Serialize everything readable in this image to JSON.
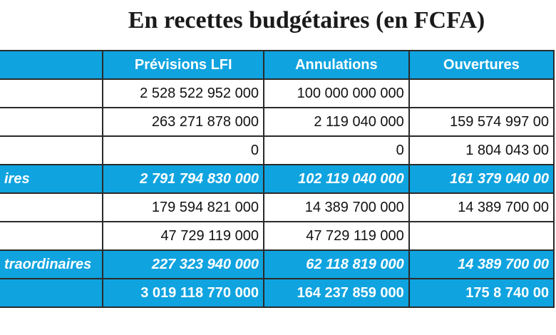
{
  "title": "En recettes budgétaires (en FCFA)",
  "table": {
    "headers": [
      "",
      "Prévisions LFI",
      "Annulations",
      "Ouvertures"
    ],
    "rows": [
      {
        "kind": "data",
        "label": "",
        "values": [
          "2 528 522 952 000",
          "100 000 000 000",
          ""
        ]
      },
      {
        "kind": "data",
        "label": "",
        "values": [
          "263 271 878 000",
          "2 119 040 000",
          "159 574 997 00"
        ]
      },
      {
        "kind": "data",
        "label": "",
        "values": [
          "0",
          "0",
          "1 804 043 00"
        ]
      },
      {
        "kind": "total",
        "label": "ires",
        "values": [
          "2 791 794 830 000",
          "102 119 040 000",
          "161 379 040 00"
        ]
      },
      {
        "kind": "data",
        "label": "",
        "values": [
          "179 594 821 000",
          "14 389 700 000",
          "14 389 700 00"
        ]
      },
      {
        "kind": "data",
        "label": "",
        "values": [
          "47 729 119 000",
          "47 729 119 000",
          ""
        ]
      },
      {
        "kind": "total",
        "label": "traordinaires",
        "values": [
          "227 323 940 000",
          "62 118 819 000",
          "14 389 700 00"
        ]
      },
      {
        "kind": "grand",
        "label": "",
        "values": [
          "3 019 118 770 000",
          "164 237 859 000",
          "175 8 740 00"
        ]
      }
    ]
  }
}
